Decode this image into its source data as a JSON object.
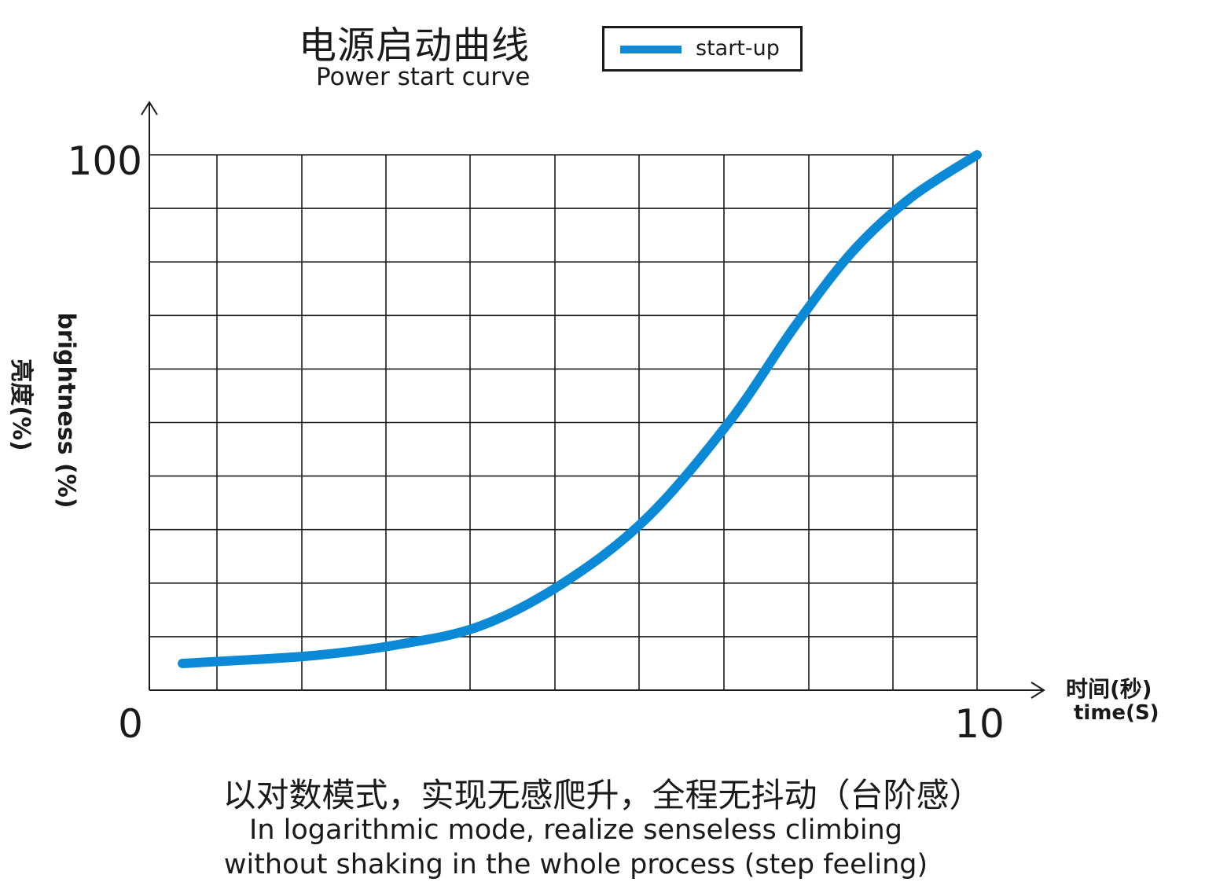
{
  "header": {
    "title_zh": "电源启动曲线",
    "title_en": "Power start curve"
  },
  "legend": {
    "label": "start-up",
    "color": "#0a8ad6"
  },
  "axes": {
    "ylabel_en": "brightness (%)",
    "ylabel_zh": "亮度(%)",
    "xlabel_zh": "时间(秒)",
    "xlabel_en": "time(S)"
  },
  "caption": {
    "zh": "以对数模式，实现无感爬升，全程无抖动（台阶感）",
    "en_line1": "In logarithmic mode, realize senseless climbing",
    "en_line2": "without shaking in the whole process (step feeling)"
  },
  "chart_data": {
    "type": "line",
    "xlim": [
      0,
      10
    ],
    "ylim": [
      0,
      100
    ],
    "x_ticks": [
      "0",
      "10"
    ],
    "y_ticks": [
      "100"
    ],
    "grid": true,
    "legend_position": "top",
    "series": [
      {
        "name": "start-up",
        "color": "#0a8ad6",
        "x": [
          0.4,
          1.0,
          2.0,
          3.0,
          4.0,
          5.0,
          6.0,
          7.0,
          7.8,
          8.5,
          9.2,
          10.0
        ],
        "y": [
          5,
          5.5,
          6.5,
          8.5,
          12,
          20,
          32,
          50,
          68,
          82,
          92,
          100
        ]
      }
    ]
  }
}
